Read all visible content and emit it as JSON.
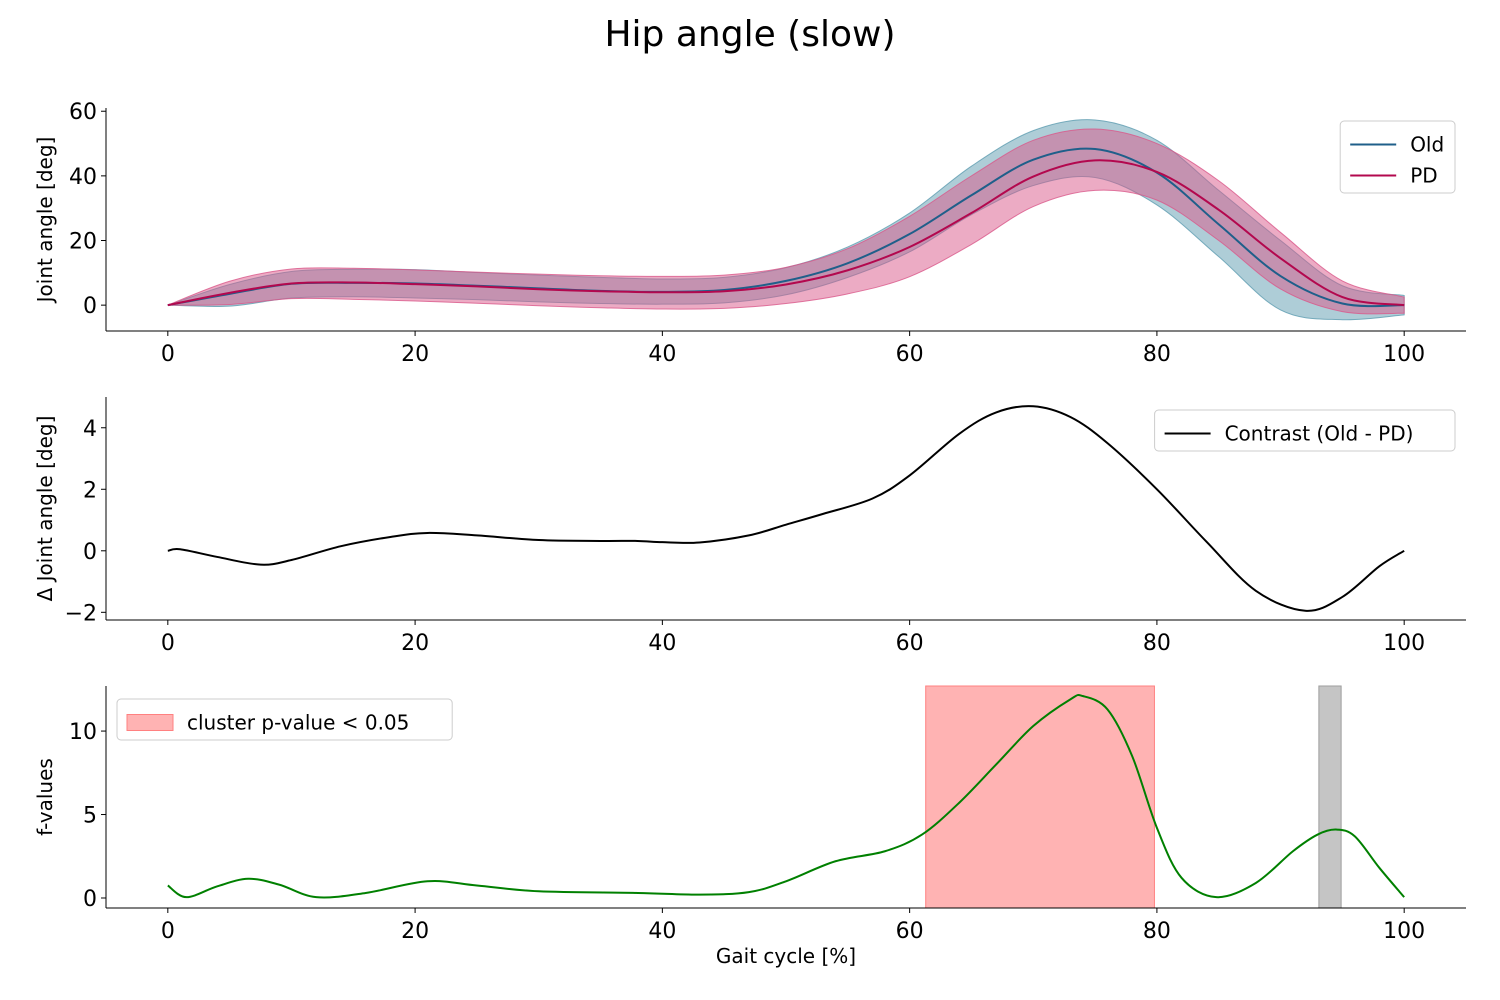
{
  "figure": {
    "title": "Hip angle (slow)"
  },
  "colors": {
    "old": "#1f5f8a",
    "pd": "#b3084e",
    "old_band": "#5e9cb0",
    "pd_band": "#d9588a",
    "contrast": "#000000",
    "fvalues": "#008000",
    "cluster": "#ff8080",
    "nonsig": "#9e9e9e"
  },
  "chart_data": [
    {
      "type": "line",
      "panel": "joint-angle",
      "xlabel": "",
      "ylabel": "Joint angle [deg]",
      "xlim": [
        -5,
        105
      ],
      "ylim": [
        -8,
        61
      ],
      "xticks": [
        0,
        20,
        40,
        60,
        80,
        100
      ],
      "yticks": [
        0,
        20,
        40,
        60
      ],
      "legend_position": "top-right",
      "series": [
        {
          "name": "Old",
          "color": "#1f5f8a",
          "x": [
            0,
            5,
            10,
            15,
            20,
            25,
            30,
            35,
            40,
            45,
            50,
            55,
            60,
            65,
            70,
            75,
            80,
            85,
            90,
            95,
            100
          ],
          "y": [
            0,
            3.5,
            6.6,
            6.9,
            6.7,
            6,
            5.2,
            4.4,
            4.1,
            4.7,
            7.5,
            13,
            22,
            34,
            45,
            48.3,
            41,
            25,
            9,
            0.5,
            0
          ],
          "band_lower": [
            0,
            -0.3,
            2.2,
            2.6,
            2.2,
            1.7,
            1,
            0.5,
            0.3,
            0.7,
            3.2,
            8.6,
            16.5,
            28,
            37,
            39.5,
            31,
            15,
            -1.5,
            -4.5,
            -3
          ],
          "band_upper": [
            0,
            6.4,
            10.4,
            11.1,
            11,
            10.1,
            9.3,
            8.6,
            8.1,
            8.6,
            11.6,
            18,
            28.5,
            43,
            54,
            57.3,
            51,
            35.5,
            20,
            6,
            3
          ]
        },
        {
          "name": "PD",
          "color": "#b3084e",
          "x": [
            0,
            5,
            10,
            15,
            20,
            25,
            30,
            35,
            40,
            45,
            50,
            55,
            60,
            65,
            70,
            75,
            80,
            85,
            90,
            95,
            100
          ],
          "y": [
            0,
            3.8,
            6.7,
            7,
            6.5,
            5.8,
            4.9,
            4.3,
            4,
            4.3,
            6.4,
            10.8,
            18,
            28.5,
            39.8,
            44.8,
            41.2,
            29.5,
            14.5,
            2.5,
            0
          ],
          "band_lower": [
            0,
            0.2,
            2,
            1.8,
            1.3,
            0.6,
            -0.2,
            -0.8,
            -1.2,
            -1,
            0.5,
            3.5,
            8.8,
            18.8,
            30.5,
            35.5,
            32.5,
            20,
            5,
            -2,
            -2.5
          ],
          "band_upper": [
            0,
            7.4,
            11.2,
            11.4,
            10.9,
            10.2,
            9.6,
            9.1,
            8.9,
            9.3,
            11.7,
            17.5,
            27.5,
            40,
            51,
            54.5,
            50,
            38.5,
            22.5,
            7.5,
            2.5
          ]
        }
      ]
    },
    {
      "type": "line",
      "panel": "contrast",
      "xlabel": "",
      "ylabel": "Δ Joint angle [deg]",
      "xlim": [
        -5,
        105
      ],
      "ylim": [
        -2.25,
        5.0
      ],
      "xticks": [
        0,
        20,
        40,
        60,
        80,
        100
      ],
      "yticks": [
        -2,
        0,
        2,
        4
      ],
      "legend_position": "top-right",
      "series": [
        {
          "name": "Contrast (Old - PD)",
          "color": "#000000",
          "x": [
            0,
            1,
            4,
            7.5,
            10,
            14,
            18,
            21,
            25,
            30,
            35,
            38,
            40,
            43,
            47,
            50,
            53,
            57,
            60,
            64,
            67,
            70,
            73,
            76,
            80,
            84,
            88,
            92,
            95,
            98,
            100
          ],
          "y": [
            0,
            0.05,
            -0.2,
            -0.45,
            -0.3,
            0.15,
            0.45,
            0.58,
            0.5,
            0.35,
            0.32,
            0.32,
            0.28,
            0.27,
            0.5,
            0.85,
            1.2,
            1.7,
            2.45,
            3.8,
            4.5,
            4.7,
            4.35,
            3.5,
            2.0,
            0.3,
            -1.3,
            -1.95,
            -1.5,
            -0.5,
            0
          ]
        }
      ]
    },
    {
      "type": "line",
      "panel": "f-values",
      "xlabel": "Gait cycle [%]",
      "ylabel": "f-values",
      "xlim": [
        -5,
        105
      ],
      "ylim": [
        -0.6,
        12.7
      ],
      "xticks": [
        0,
        20,
        40,
        60,
        80,
        100
      ],
      "yticks": [
        0,
        5,
        10
      ],
      "legend_position": "top-left",
      "series": [
        {
          "name": "",
          "color": "#008000",
          "x": [
            0,
            1.5,
            4,
            6.5,
            9,
            12,
            16,
            21,
            25,
            30,
            38,
            43,
            47,
            50,
            54,
            58,
            61,
            64,
            67,
            70,
            73,
            74,
            76,
            78,
            80,
            82,
            84.8,
            88,
            91,
            93,
            94.5,
            96,
            98,
            100
          ],
          "y": [
            0.75,
            0.05,
            0.7,
            1.15,
            0.8,
            0.05,
            0.3,
            1.0,
            0.75,
            0.4,
            0.3,
            0.2,
            0.35,
            1.0,
            2.2,
            2.8,
            3.8,
            5.7,
            8.0,
            10.3,
            11.9,
            12.1,
            11.3,
            8.5,
            4.2,
            1.2,
            0.05,
            0.9,
            2.8,
            3.8,
            4.1,
            3.7,
            1.8,
            0.05
          ]
        }
      ],
      "spans": [
        {
          "label": "cluster p-value < 0.05",
          "start": 61.3,
          "end": 79.8,
          "color": "#ff8080"
        },
        {
          "label": "",
          "start": 93.1,
          "end": 94.9,
          "color": "#9e9e9e"
        }
      ]
    }
  ]
}
